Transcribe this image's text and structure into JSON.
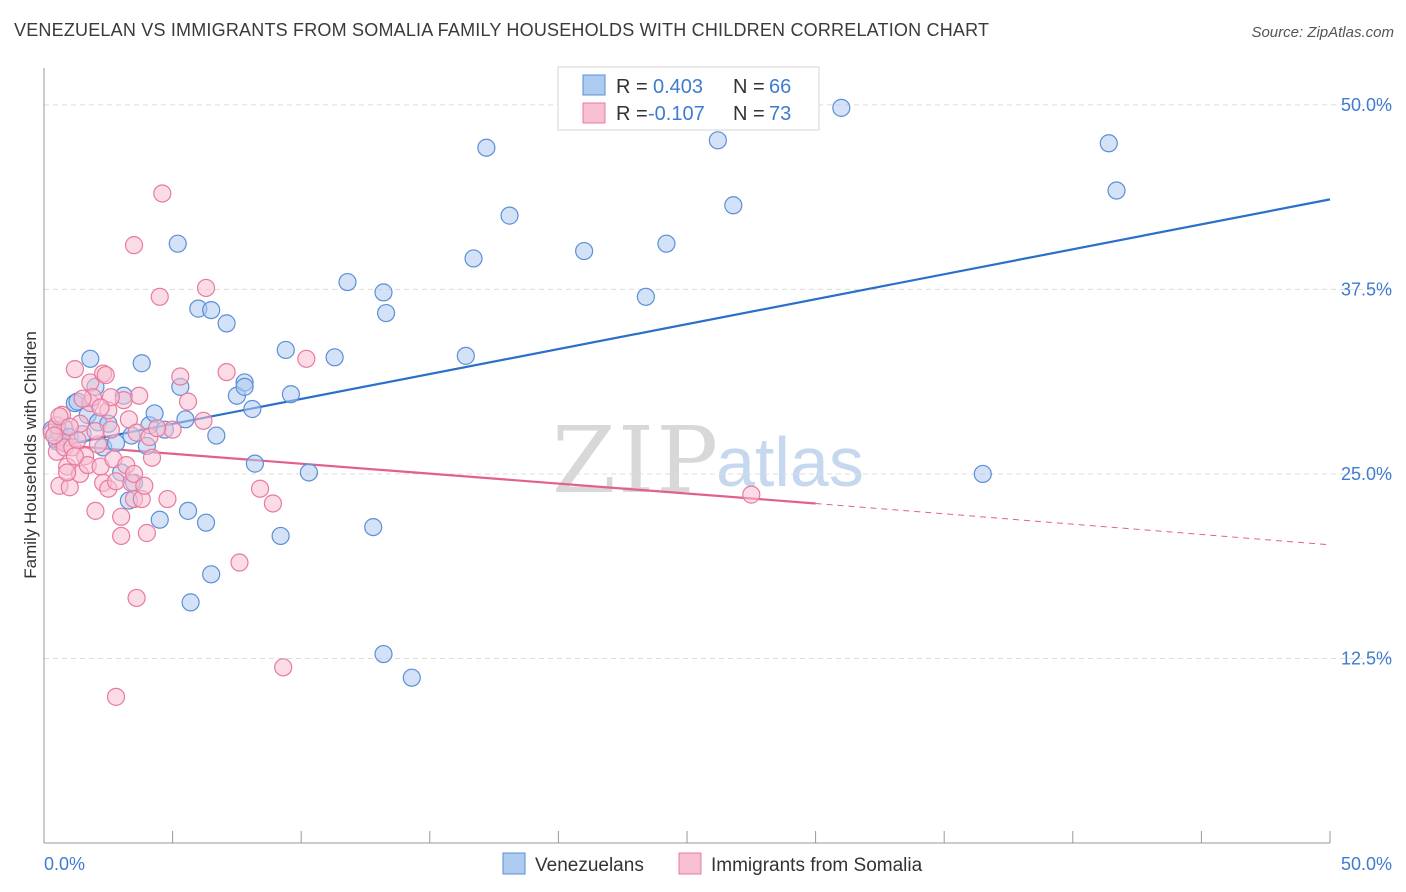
{
  "title": "VENEZUELAN VS IMMIGRANTS FROM SOMALIA FAMILY HOUSEHOLDS WITH CHILDREN CORRELATION CHART",
  "source": "Source: ZipAtlas.com",
  "watermark": {
    "zip": "ZIP",
    "atlas": "atlas"
  },
  "colors": {
    "blue_fill": "#aecbf0",
    "blue_stroke": "#5b8fd6",
    "blue_line": "#2b6fcb",
    "pink_fill": "#f7c0d2",
    "pink_stroke": "#e87aa0",
    "pink_line": "#e0608e",
    "tick_text": "#3f7bd0",
    "grid": "#dcdcdc"
  },
  "legend": {
    "r_label": "R =",
    "n_label": "N =",
    "rows": [
      {
        "r": "0.403",
        "n": "66"
      },
      {
        "r": "-0.107",
        "n": "73"
      }
    ]
  },
  "chart_data": {
    "type": "scatter",
    "xlabel": "",
    "ylabel": "Family Households with Children",
    "xlim": [
      0,
      50
    ],
    "ylim": [
      0,
      52.5
    ],
    "x_tick_labels": [
      "0.0%",
      "50.0%"
    ],
    "y_ticks": [
      12.5,
      25.0,
      37.5,
      50.0
    ],
    "y_tick_labels": [
      "12.5%",
      "25.0%",
      "37.5%",
      "50.0%"
    ],
    "grid": true,
    "legend_position": "top-center",
    "series": [
      {
        "name": "Venezuelans",
        "r": 0.403,
        "n": 66,
        "trend": {
          "x": [
            0.3,
            50.0
          ],
          "y": [
            26.8,
            43.6
          ]
        },
        "points": [
          [
            0.3,
            28.0
          ],
          [
            0.5,
            27.2
          ],
          [
            0.6,
            27.8
          ],
          [
            0.8,
            28.1
          ],
          [
            1.0,
            27.5
          ],
          [
            1.2,
            29.8
          ],
          [
            1.3,
            29.9
          ],
          [
            1.5,
            27.7
          ],
          [
            1.7,
            29.0
          ],
          [
            1.8,
            32.8
          ],
          [
            2.0,
            30.9
          ],
          [
            2.1,
            28.5
          ],
          [
            2.3,
            26.8
          ],
          [
            2.5,
            28.4
          ],
          [
            3.4,
            27.6
          ],
          [
            2.8,
            27.1
          ],
          [
            3.0,
            25.1
          ],
          [
            3.1,
            30.3
          ],
          [
            3.3,
            23.2
          ],
          [
            3.5,
            24.4
          ],
          [
            4.0,
            26.9
          ],
          [
            3.8,
            32.5
          ],
          [
            4.1,
            28.3
          ],
          [
            4.3,
            29.1
          ],
          [
            4.5,
            21.9
          ],
          [
            4.7,
            28.0
          ],
          [
            5.3,
            30.9
          ],
          [
            5.5,
            28.7
          ],
          [
            5.6,
            22.5
          ],
          [
            6.3,
            21.7
          ],
          [
            5.7,
            16.3
          ],
          [
            6.0,
            36.2
          ],
          [
            6.5,
            18.2
          ],
          [
            6.7,
            27.6
          ],
          [
            7.1,
            35.2
          ],
          [
            7.5,
            30.3
          ],
          [
            7.8,
            31.2
          ],
          [
            8.1,
            29.4
          ],
          [
            8.2,
            25.7
          ],
          [
            9.2,
            20.8
          ],
          [
            9.4,
            33.4
          ],
          [
            9.6,
            30.4
          ],
          [
            10.3,
            25.1
          ],
          [
            11.3,
            32.9
          ],
          [
            11.8,
            38.0
          ],
          [
            13.2,
            37.3
          ],
          [
            13.3,
            35.9
          ],
          [
            12.8,
            21.4
          ],
          [
            13.2,
            12.8
          ],
          [
            14.3,
            11.2
          ],
          [
            7.8,
            30.9
          ],
          [
            5.2,
            40.6
          ],
          [
            6.5,
            36.1
          ],
          [
            16.7,
            39.6
          ],
          [
            18.1,
            42.5
          ],
          [
            17.2,
            47.1
          ],
          [
            21.0,
            40.1
          ],
          [
            23.4,
            37.0
          ],
          [
            24.2,
            40.6
          ],
          [
            26.2,
            47.6
          ],
          [
            26.8,
            43.2
          ],
          [
            31.0,
            49.8
          ],
          [
            36.5,
            25.0
          ],
          [
            41.4,
            47.4
          ],
          [
            41.7,
            44.2
          ],
          [
            16.4,
            33.0
          ]
        ]
      },
      {
        "name": "Immigrants from Somalia",
        "r": -0.107,
        "n": 73,
        "trend": {
          "x": [
            0.3,
            30.0
          ],
          "y": [
            27.0,
            23.0
          ]
        },
        "trend_dashed": {
          "x": [
            30.0,
            50.0
          ],
          "y": [
            23.0,
            20.2
          ]
        },
        "points": [
          [
            0.3,
            27.8
          ],
          [
            0.5,
            28.3
          ],
          [
            0.5,
            26.5
          ],
          [
            0.6,
            24.2
          ],
          [
            0.7,
            29.0
          ],
          [
            0.8,
            27.1
          ],
          [
            0.8,
            26.8
          ],
          [
            0.9,
            25.5
          ],
          [
            1.0,
            24.1
          ],
          [
            1.1,
            26.8
          ],
          [
            1.2,
            32.1
          ],
          [
            1.3,
            27.3
          ],
          [
            1.4,
            25.0
          ],
          [
            1.4,
            28.4
          ],
          [
            1.6,
            26.2
          ],
          [
            1.7,
            25.6
          ],
          [
            1.8,
            31.2
          ],
          [
            1.8,
            29.8
          ],
          [
            1.9,
            30.2
          ],
          [
            2.0,
            22.5
          ],
          [
            2.1,
            27.0
          ],
          [
            2.2,
            25.5
          ],
          [
            2.3,
            24.4
          ],
          [
            2.3,
            31.8
          ],
          [
            2.4,
            31.7
          ],
          [
            2.5,
            29.3
          ],
          [
            2.5,
            24.0
          ],
          [
            2.6,
            28.0
          ],
          [
            2.7,
            26.0
          ],
          [
            2.8,
            24.5
          ],
          [
            3.0,
            22.1
          ],
          [
            3.0,
            20.8
          ],
          [
            3.1,
            30.0
          ],
          [
            3.2,
            25.6
          ],
          [
            3.3,
            28.7
          ],
          [
            3.4,
            24.4
          ],
          [
            3.5,
            23.3
          ],
          [
            3.5,
            25.0
          ],
          [
            3.6,
            27.8
          ],
          [
            3.7,
            30.3
          ],
          [
            3.8,
            23.3
          ],
          [
            4.0,
            21.0
          ],
          [
            4.1,
            27.5
          ],
          [
            4.2,
            26.1
          ],
          [
            3.6,
            16.6
          ],
          [
            3.5,
            40.5
          ],
          [
            4.5,
            37.0
          ],
          [
            4.6,
            44.0
          ],
          [
            5.0,
            28.0
          ],
          [
            5.3,
            31.6
          ],
          [
            5.6,
            29.9
          ],
          [
            6.2,
            28.6
          ],
          [
            6.3,
            37.6
          ],
          [
            7.1,
            31.9
          ],
          [
            7.6,
            19.0
          ],
          [
            8.4,
            24.0
          ],
          [
            8.9,
            23.0
          ],
          [
            9.3,
            11.9
          ],
          [
            10.2,
            32.8
          ],
          [
            2.8,
            9.9
          ],
          [
            27.5,
            23.6
          ],
          [
            0.4,
            27.6
          ],
          [
            0.6,
            28.9
          ],
          [
            1.0,
            28.2
          ],
          [
            1.2,
            26.2
          ],
          [
            1.5,
            30.1
          ],
          [
            2.0,
            27.9
          ],
          [
            2.6,
            30.2
          ],
          [
            3.9,
            24.2
          ],
          [
            4.4,
            28.1
          ],
          [
            4.8,
            23.3
          ],
          [
            0.9,
            25.1
          ],
          [
            2.2,
            29.5
          ]
        ]
      }
    ]
  }
}
